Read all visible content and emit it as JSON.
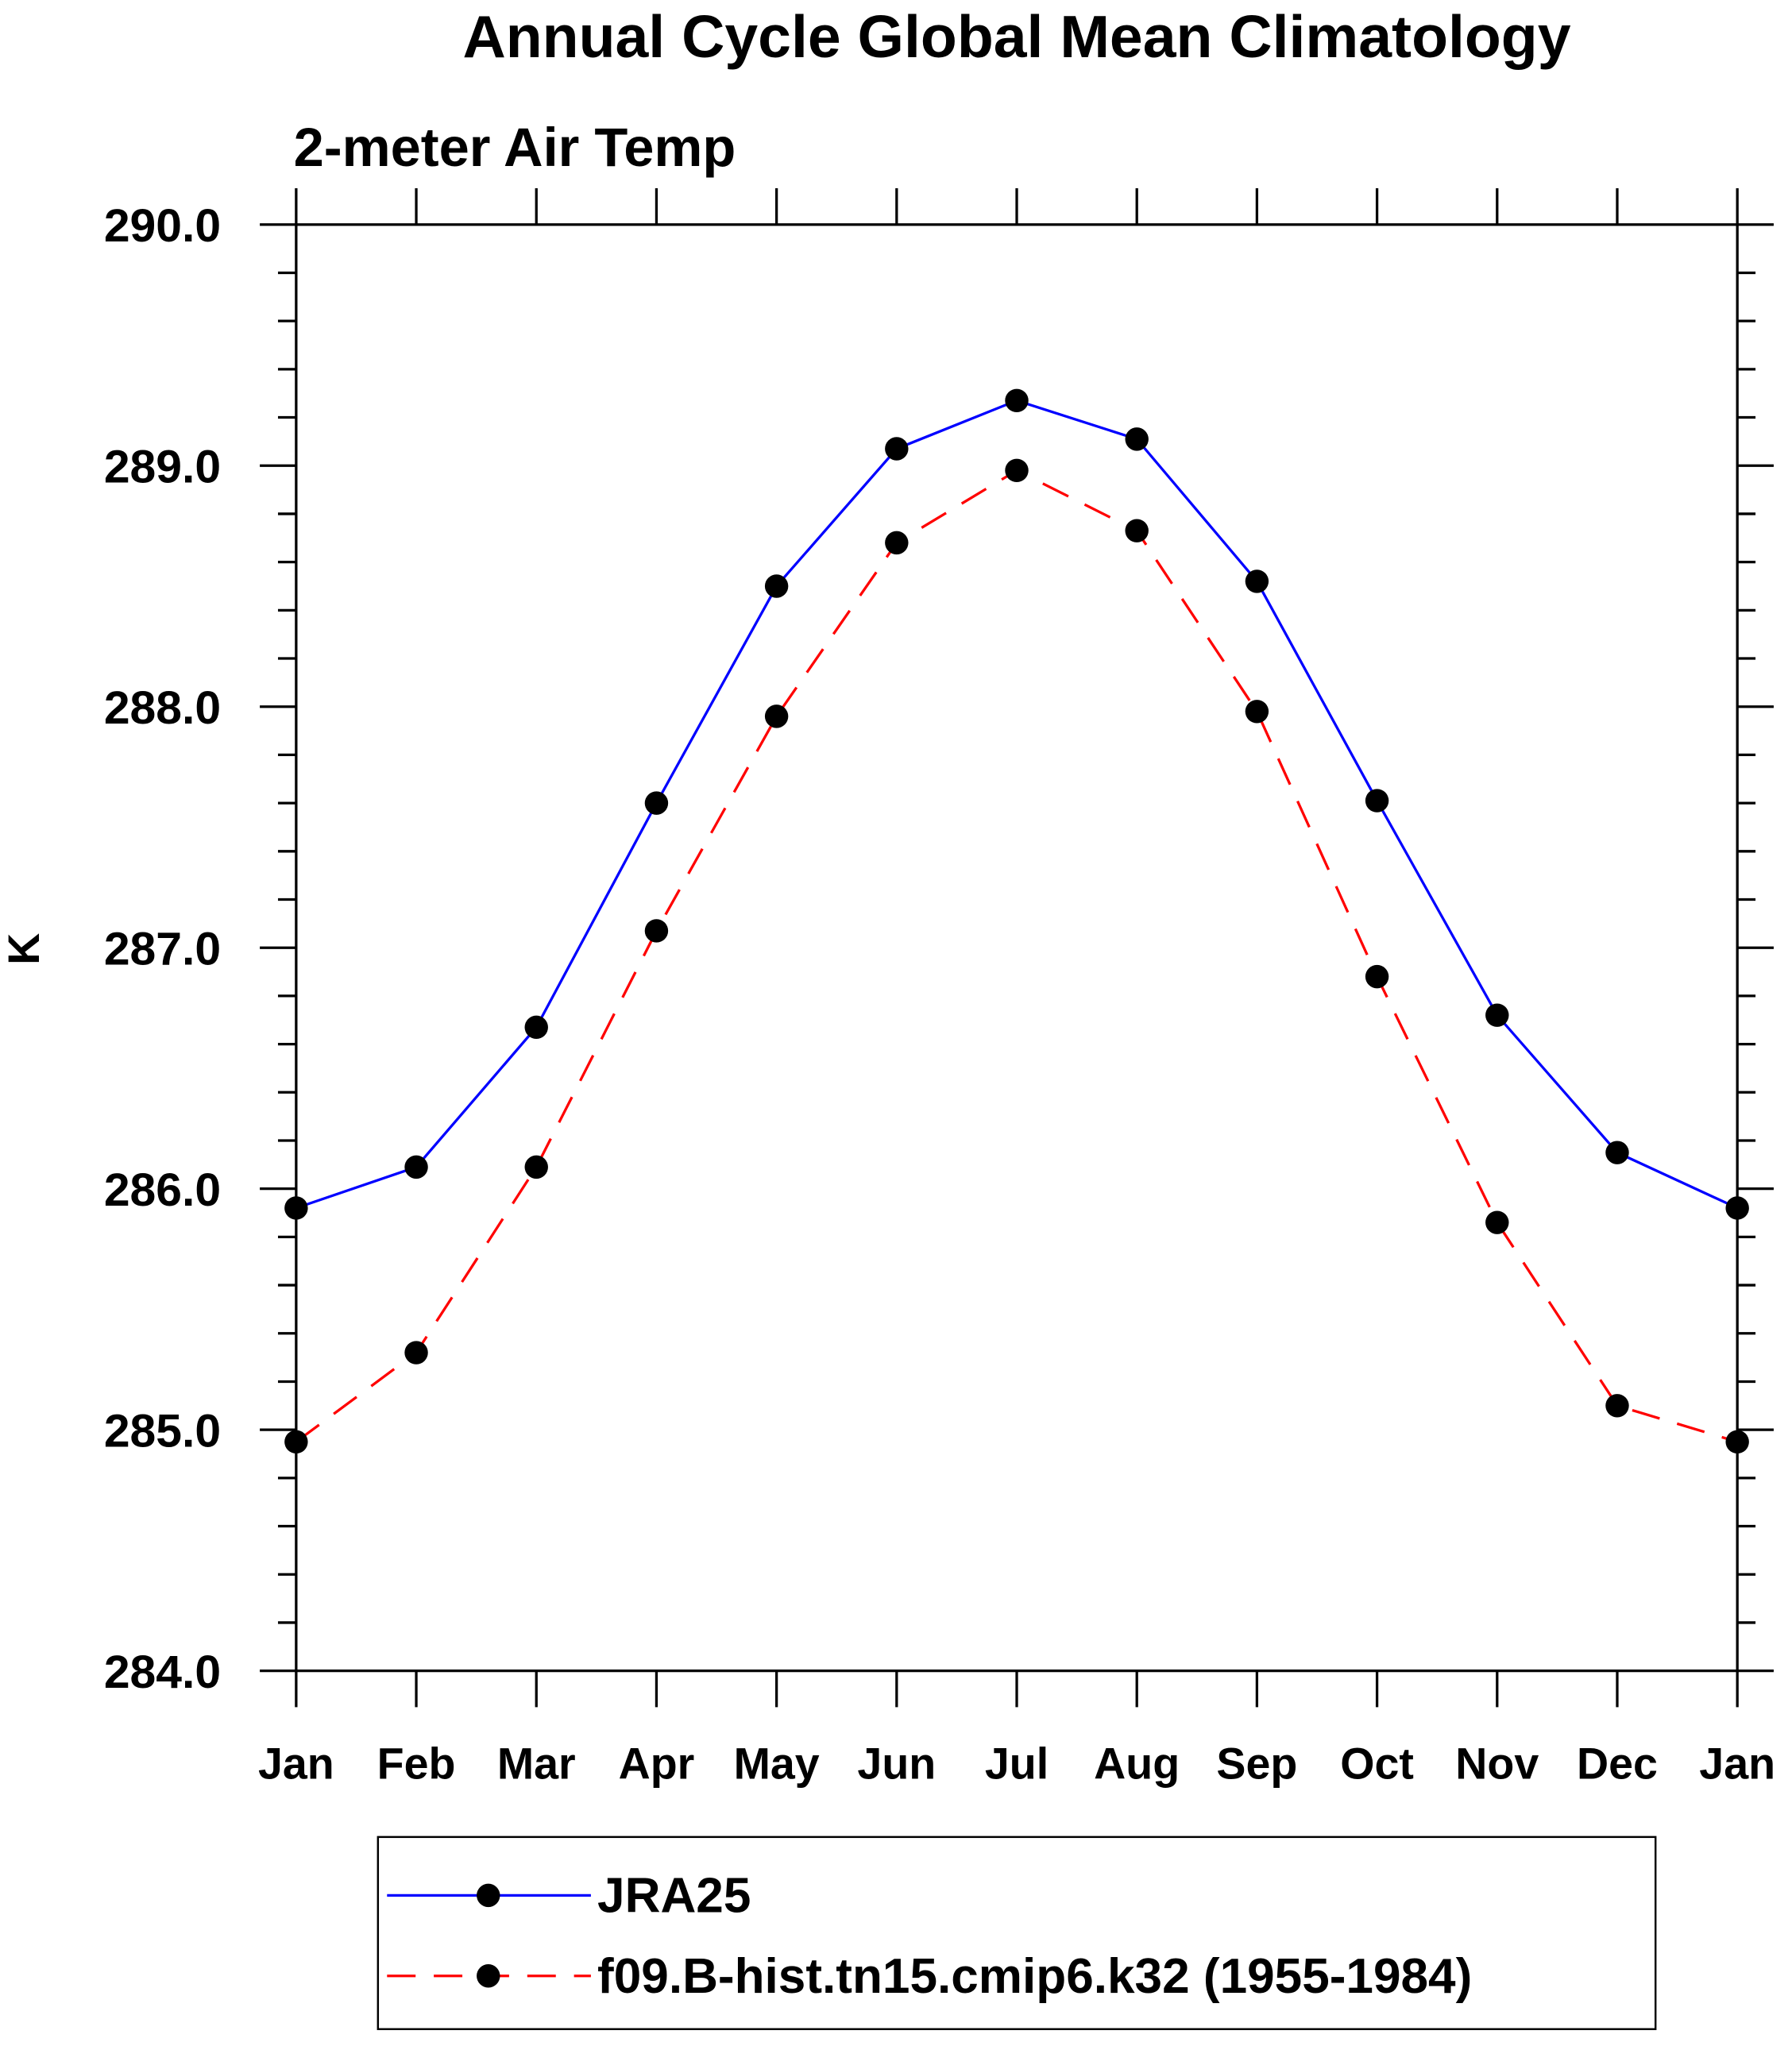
{
  "chart_data": {
    "type": "line",
    "title": "Annual Cycle Global Mean Climatology",
    "subtitle": "2-meter Air Temp",
    "xlabel": "",
    "ylabel": "K",
    "categories": [
      "Jan",
      "Feb",
      "Mar",
      "Apr",
      "May",
      "Jun",
      "Jul",
      "Aug",
      "Sep",
      "Oct",
      "Nov",
      "Dec",
      "Jan"
    ],
    "ylim": [
      284.0,
      290.0
    ],
    "yticks": [
      "284.0",
      "285.0",
      "286.0",
      "287.0",
      "288.0",
      "289.0",
      "290.0"
    ],
    "grid": false,
    "legend_position": "bottom",
    "series": [
      {
        "name": "JRA25",
        "color": "#0000ff",
        "dash": "solid",
        "values": [
          285.92,
          286.09,
          286.67,
          287.6,
          288.5,
          289.07,
          289.27,
          289.11,
          288.52,
          287.61,
          286.72,
          286.15,
          285.92
        ]
      },
      {
        "name": "f09.B-hist.tn15.cmip6.k32 (1955-1984)",
        "color": "#ff0000",
        "dash": "dashed",
        "values": [
          284.95,
          285.32,
          286.09,
          287.07,
          287.96,
          288.68,
          288.98,
          288.73,
          287.98,
          286.88,
          285.86,
          285.1,
          284.95
        ]
      }
    ]
  }
}
